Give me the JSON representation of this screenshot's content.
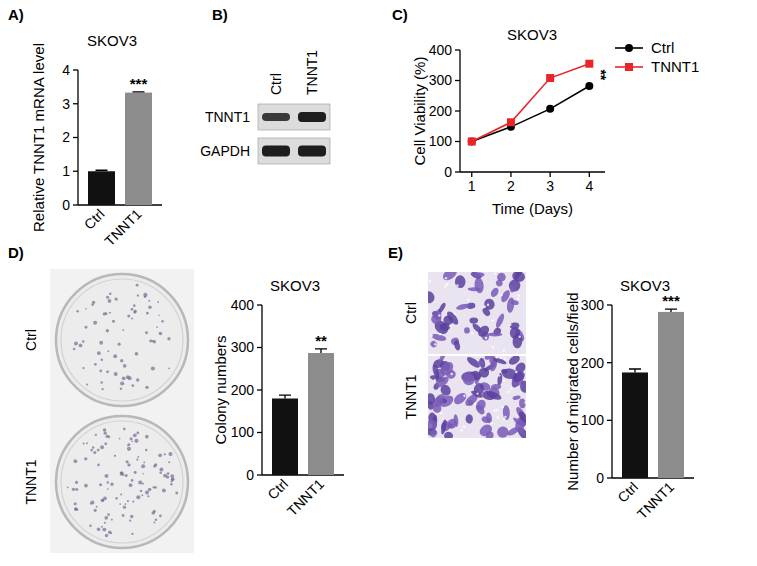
{
  "chart_data": [
    {
      "type": "bar",
      "title": "SKOV3",
      "y_label": "Relative TNNT1 mRNA level",
      "categories": [
        "Ctrl",
        "TNNT1"
      ],
      "values": [
        1.0,
        3.33
      ],
      "errors": [
        0.03,
        0.02
      ],
      "colors": [
        "#111111",
        "#8c8c8c"
      ],
      "ylim": [
        0,
        4
      ],
      "yticks": [
        0,
        1,
        2,
        3,
        4
      ],
      "annotations": [
        {
          "text": "***",
          "x": "TNNT1"
        }
      ]
    },
    {
      "type": "line",
      "title": "SKOV3",
      "x_label": "Time (Days)",
      "y_label": "Cell Viability (%)",
      "x": [
        1,
        2,
        3,
        4
      ],
      "series": [
        {
          "name": "Ctrl",
          "color": "#000000",
          "marker": "circle",
          "values": [
            100,
            148,
            207,
            282
          ]
        },
        {
          "name": "TNNT1",
          "color": "#e8262a",
          "marker": "square",
          "values": [
            100,
            163,
            308,
            355
          ]
        }
      ],
      "xlim": [
        0.7,
        4.4
      ],
      "xticks": [
        1,
        2,
        3,
        4
      ],
      "ylim": [
        0,
        400
      ],
      "yticks": [
        0,
        100,
        200,
        300,
        400
      ],
      "legend": "right",
      "annotations": [
        {
          "text": "**",
          "x": 4
        }
      ]
    },
    {
      "type": "bar",
      "title": "SKOV3",
      "y_label": "Colony numbers",
      "categories": [
        "Ctrl",
        "TNNT1"
      ],
      "values": [
        180,
        287
      ],
      "errors": [
        8,
        10
      ],
      "colors": [
        "#111111",
        "#8c8c8c"
      ],
      "ylim": [
        0,
        400
      ],
      "yticks": [
        0,
        100,
        200,
        300,
        400
      ],
      "annotations": [
        {
          "text": "**",
          "x": "TNNT1"
        }
      ]
    },
    {
      "type": "bar",
      "title": "SKOV3",
      "y_label": "Number of migrated cells/field",
      "categories": [
        "Ctrl",
        "TNNT1"
      ],
      "values": [
        183,
        288
      ],
      "errors": [
        6,
        5
      ],
      "colors": [
        "#111111",
        "#8c8c8c"
      ],
      "ylim": [
        0,
        300
      ],
      "yticks": [
        0,
        100,
        200,
        300
      ],
      "annotations": [
        {
          "text": "***",
          "x": "TNNT1"
        }
      ]
    }
  ],
  "panel_labels": [
    "A)",
    "B)",
    "C)",
    "D)",
    "E)"
  ],
  "western_blot": {
    "columns": [
      "Ctrl",
      "TNNT1"
    ],
    "rows": [
      "TNNT1",
      "GAPDH"
    ]
  },
  "colony_images": {
    "rows": [
      "Ctrl",
      "TNNT1"
    ]
  },
  "migration_images": {
    "rows": [
      "Ctrl",
      "TNNT1"
    ]
  }
}
